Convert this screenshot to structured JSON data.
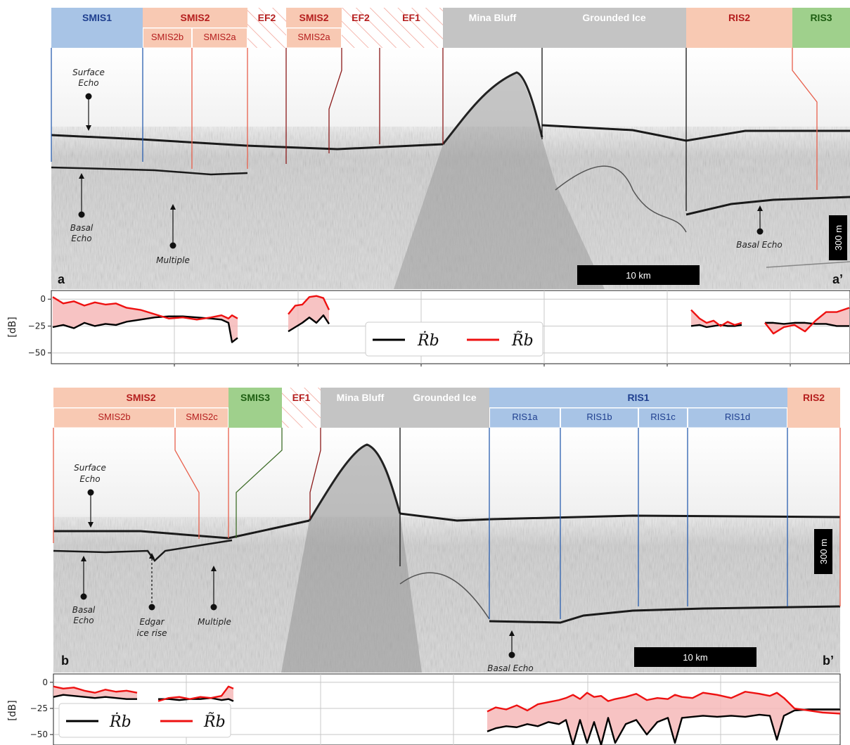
{
  "colors": {
    "smis1": "#a8c4e6",
    "smis2": "#f8c9b3",
    "smis3": "#9fd08c",
    "ef": "#e8503a",
    "mina": "#c4c4c4",
    "grounded": "#c4c4c4",
    "ris1": "#a8c4e6",
    "ris2": "#f8c9b3",
    "ris3": "#9fd08c",
    "rb_dot": "#000000",
    "rb_tilde": "#ee1111",
    "fill_between": "#f6b8b8",
    "text_blue": "#1f3f8f",
    "text_red": "#b51e1e",
    "text_green": "#1e5e12",
    "text_white": "#ffffff"
  },
  "panels": {
    "a": {
      "label_left": "a",
      "label_right": "a’",
      "header": [
        {
          "label": "SMIS1",
          "x0": 73,
          "x1": 203,
          "color": "smis1",
          "text": "text_blue",
          "sub": []
        },
        {
          "label": "SMIS2",
          "x0": 203,
          "x1": 352,
          "color": "smis2",
          "text": "text_red",
          "sub": [
            {
              "label": "SMIS2b",
              "x0": 203,
              "x1": 273
            },
            {
              "label": "SMIS2a",
              "x0": 273,
              "x1": 352
            }
          ]
        },
        {
          "label": "EF2",
          "x0": 352,
          "x1": 407,
          "color": "ef",
          "text": "text_red",
          "hatch": true,
          "sub": []
        },
        {
          "label": "SMIS2",
          "x0": 407,
          "x1": 486,
          "color": "smis2",
          "text": "text_red",
          "sub": [
            {
              "label": "SMIS2a",
              "x0": 407,
              "x1": 486
            }
          ]
        },
        {
          "label": "EF2",
          "x0": 486,
          "x1": 540,
          "color": "ef",
          "text": "text_red",
          "hatch": true,
          "sub": []
        },
        {
          "label": "EF1",
          "x0": 540,
          "x1": 630,
          "color": "ef",
          "text": "text_red",
          "hatch": true,
          "sub": []
        },
        {
          "label": "Mina Bluff",
          "x0": 630,
          "x1": 771,
          "color": "mina",
          "text": "text_white",
          "sub": []
        },
        {
          "label": "Grounded Ice",
          "x0": 771,
          "x1": 976,
          "color": "grounded",
          "text": "text_white",
          "sub": []
        },
        {
          "label": "RIS2",
          "x0": 976,
          "x1": 1127,
          "color": "ris2",
          "text": "text_red",
          "sub": []
        },
        {
          "label": "RIS3",
          "x0": 1127,
          "x1": 1209,
          "color": "ris3",
          "text": "text_green",
          "sub": []
        }
      ],
      "annotations": {
        "surface_echo": [
          "Surface",
          "Echo"
        ],
        "basal_echo_left": [
          "Basal",
          "Echo"
        ],
        "multiple": "Multiple",
        "basal_echo_right": "Basal Echo"
      },
      "scalebar_h": "10 km",
      "scalebar_v": "300 m"
    },
    "b": {
      "label_left": "b",
      "label_right": "b’",
      "header": [
        {
          "label": "SMIS2",
          "x0": 76,
          "x1": 325,
          "color": "smis2",
          "text": "text_red",
          "sub": [
            {
              "label": "SMIS2b",
              "x0": 76,
              "x1": 249
            },
            {
              "label": "SMIS2c",
              "x0": 249,
              "x1": 325
            }
          ]
        },
        {
          "label": "SMIS3",
          "x0": 325,
          "x1": 401,
          "color": "smis3",
          "text": "text_green",
          "sub": []
        },
        {
          "label": "EF1",
          "x0": 401,
          "x1": 456,
          "color": "ef",
          "text": "text_red",
          "hatch": true,
          "sub": []
        },
        {
          "label": "Mina Bluff",
          "x0": 456,
          "x1": 569,
          "color": "mina",
          "text": "text_white",
          "sub": []
        },
        {
          "label": "Grounded Ice",
          "x0": 569,
          "x1": 696,
          "color": "grounded",
          "text": "text_white",
          "sub": []
        },
        {
          "label": "RIS1",
          "x0": 696,
          "x1": 1120,
          "color": "ris1",
          "text": "text_blue",
          "sub": [
            {
              "label": "RIS1a",
              "x0": 696,
              "x1": 797
            },
            {
              "label": "RIS1b",
              "x0": 797,
              "x1": 908
            },
            {
              "label": "RIS1c",
              "x0": 908,
              "x1": 978
            },
            {
              "label": "RIS1d",
              "x0": 978,
              "x1": 1120
            }
          ]
        },
        {
          "label": "RIS2",
          "x0": 1120,
          "x1": 1195,
          "color": "ris2",
          "text": "text_red",
          "sub": []
        }
      ],
      "annotations": {
        "surface_echo": [
          "Surface",
          "Echo"
        ],
        "basal_echo_left": [
          "Basal",
          "Echo"
        ],
        "edgar": [
          "Edgar",
          "ice rise"
        ],
        "multiple": "Multiple",
        "basal_echo_right": "Basal Echo"
      },
      "scalebar_h": "10 km",
      "scalebar_v": "300 m"
    }
  },
  "chart_data": [
    {
      "type": "line",
      "panel": "a",
      "ylabel": "[dB]",
      "ylim": [
        -60,
        8
      ],
      "yticks": [
        0,
        -25,
        -50
      ],
      "ytick_labels": [
        "0",
        "−25",
        "−50"
      ],
      "x_units": "image column",
      "legend": {
        "placement": "lower-center",
        "entries": [
          "Ṙb",
          "R̃b"
        ]
      },
      "grid": true,
      "series": [
        {
          "name": "Ṙb",
          "color": "rb_dot",
          "segments": [
            {
              "x": [
                75,
                90,
                105,
                120,
                135,
                150,
                165,
                180,
                200,
                220,
                240,
                260,
                280,
                300,
                315,
                325,
                330,
                338
              ],
              "y": [
                -26,
                -24,
                -27,
                -22,
                -25,
                -23,
                -24,
                -21,
                -19,
                -17,
                -16,
                -16,
                -17,
                -18,
                -19,
                -22,
                -40,
                -36
              ]
            },
            {
              "x": [
                410,
                420,
                430,
                440,
                450,
                460,
                468
              ],
              "y": [
                -30,
                -26,
                -22,
                -17,
                -22,
                -15,
                -23
              ]
            },
            {
              "x": [
                983,
                995,
                1005,
                1015,
                1025,
                1035,
                1045,
                1055
              ],
              "y": [
                -25,
                -24,
                -26,
                -25,
                -24,
                -25,
                -25,
                -24
              ]
            },
            {
              "x": [
                1088,
                1100,
                1115,
                1130,
                1145,
                1160,
                1175,
                1190,
                1208
              ],
              "y": [
                -22,
                -22,
                -23,
                -22,
                -22,
                -23,
                -23,
                -25,
                -25
              ]
            }
          ]
        },
        {
          "name": "R̃b",
          "color": "rb_tilde",
          "segments": [
            {
              "x": [
                75,
                90,
                105,
                120,
                135,
                150,
                165,
                180,
                200,
                220,
                240,
                260,
                280,
                300,
                315,
                325,
                330,
                338
              ],
              "y": [
                2,
                -4,
                -2,
                -6,
                -3,
                -5,
                -4,
                -8,
                -10,
                -14,
                -18,
                -17,
                -19,
                -17,
                -15,
                -18,
                -15,
                -18
              ]
            },
            {
              "x": [
                410,
                420,
                430,
                440,
                450,
                460,
                468
              ],
              "y": [
                -14,
                -6,
                -5,
                2,
                3,
                1,
                -10
              ]
            },
            {
              "x": [
                983,
                995,
                1005,
                1015,
                1025,
                1035,
                1045,
                1055
              ],
              "y": [
                -10,
                -18,
                -22,
                -20,
                -25,
                -21,
                -24,
                -22
              ]
            },
            {
              "x": [
                1088,
                1100,
                1115,
                1130,
                1145,
                1160,
                1175,
                1190,
                1208
              ],
              "y": [
                -22,
                -32,
                -26,
                -24,
                -30,
                -20,
                -12,
                -12,
                -8
              ]
            }
          ]
        }
      ]
    },
    {
      "type": "line",
      "panel": "b",
      "ylabel": "[dB]",
      "ylim": [
        -60,
        8
      ],
      "yticks": [
        0,
        -25,
        -50
      ],
      "ytick_labels": [
        "0",
        "−25",
        "−50"
      ],
      "x_units": "image column",
      "legend": {
        "placement": "lower-left",
        "entries": [
          "Ṙb",
          "R̃b"
        ]
      },
      "grid": true,
      "series": [
        {
          "name": "Ṙb",
          "color": "rb_dot",
          "segments": [
            {
              "x": [
                76,
                90,
                105,
                120,
                135,
                150,
                165,
                180,
                195
              ],
              "y": [
                -14,
                -12,
                -13,
                -14,
                -15,
                -14,
                -15,
                -16,
                -16
              ]
            },
            {
              "x": [
                225,
                240,
                255,
                270,
                285,
                300,
                315,
                325,
                332
              ],
              "y": [
                -16,
                -16,
                -17,
                -16,
                -16,
                -15,
                -17,
                -16,
                -18
              ]
            },
            {
              "x": [
                693,
                705,
                720,
                735,
                750,
                765,
                780,
                795,
                805,
                815,
                825,
                835,
                845,
                855,
                865,
                875,
                890,
                905,
                920,
                935,
                950,
                960,
                970,
                985,
                1000,
                1020,
                1040,
                1060,
                1080,
                1095,
                1105,
                1115,
                1130,
                1150,
                1170,
                1195
              ],
              "y": [
                -47,
                -44,
                -42,
                -43,
                -40,
                -42,
                -38,
                -40,
                -36,
                -60,
                -36,
                -58,
                -38,
                -60,
                -34,
                -58,
                -40,
                -36,
                -50,
                -38,
                -34,
                -58,
                -34,
                -33,
                -32,
                -33,
                -32,
                -33,
                -31,
                -32,
                -55,
                -32,
                -27,
                -26,
                -26,
                -26
              ]
            }
          ]
        },
        {
          "name": "R̃b",
          "color": "rb_tilde",
          "segments": [
            {
              "x": [
                76,
                90,
                105,
                120,
                135,
                150,
                165,
                180,
                195
              ],
              "y": [
                -4,
                -6,
                -5,
                -8,
                -10,
                -7,
                -9,
                -8,
                -10
              ]
            },
            {
              "x": [
                225,
                240,
                255,
                270,
                285,
                300,
                315,
                325,
                332
              ],
              "y": [
                -18,
                -15,
                -14,
                -16,
                -14,
                -15,
                -13,
                -4,
                -6
              ]
            },
            {
              "x": [
                693,
                705,
                720,
                735,
                750,
                765,
                780,
                795,
                805,
                815,
                825,
                835,
                845,
                855,
                865,
                875,
                890,
                905,
                920,
                935,
                950,
                960,
                970,
                985,
                1000,
                1020,
                1040,
                1060,
                1080,
                1095,
                1105,
                1115,
                1130,
                1150,
                1170,
                1195
              ],
              "y": [
                -28,
                -24,
                -26,
                -22,
                -27,
                -21,
                -19,
                -17,
                -15,
                -12,
                -16,
                -10,
                -14,
                -13,
                -18,
                -16,
                -14,
                -11,
                -17,
                -15,
                -16,
                -12,
                -14,
                -15,
                -10,
                -12,
                -15,
                -9,
                -11,
                -13,
                -10,
                -15,
                -25,
                -27,
                -29,
                -30
              ]
            }
          ]
        }
      ]
    }
  ]
}
